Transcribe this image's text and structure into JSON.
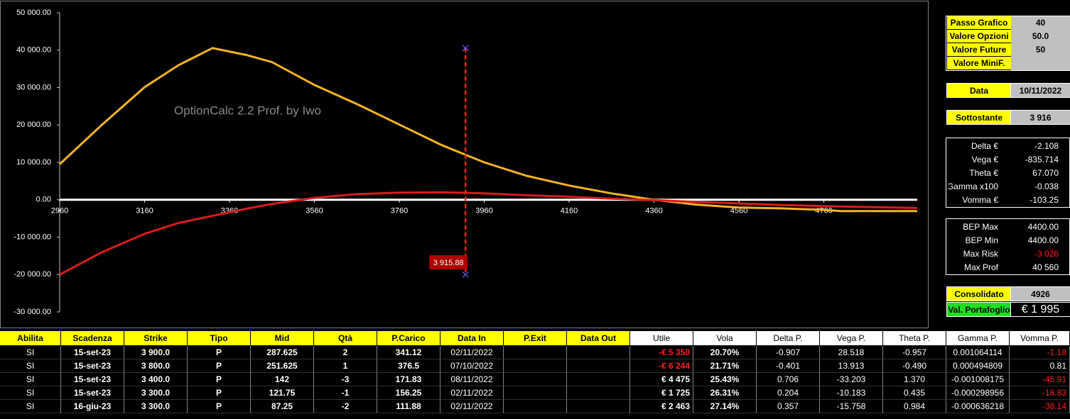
{
  "chart_data": {
    "type": "line",
    "watermark": "OptionCalc 2.2 Prof. by Iwo",
    "x": [
      2960,
      3060,
      3160,
      3240,
      3320,
      3400,
      3460,
      3560,
      3660,
      3760,
      3860,
      3960,
      4060,
      4160,
      4260,
      4360,
      4460,
      4560,
      4660,
      4760,
      4800,
      4980
    ],
    "series": [
      {
        "color": "#f5b324",
        "values": [
          9500,
          20100,
          30100,
          36000,
          40560,
          38700,
          36800,
          30700,
          25600,
          20100,
          14600,
          10000,
          6400,
          3800,
          1700,
          0,
          -1300,
          -2100,
          -2300,
          -2700,
          -3026,
          -3026
        ]
      },
      {
        "color": "#d81c1c",
        "values": [
          -20000,
          -14000,
          -9100,
          -6200,
          -4300,
          -2400,
          -1100,
          500,
          1500,
          1900,
          2000,
          1700,
          1200,
          800,
          300,
          -100,
          -600,
          -1000,
          -1400,
          -1700,
          -1800,
          -2200
        ]
      }
    ],
    "xlim": [
      2960,
      4980
    ],
    "ylim": [
      -30000,
      50000
    ],
    "xticks": [
      2960,
      3160,
      3360,
      3560,
      3760,
      3960,
      4160,
      4360,
      4560,
      4760
    ],
    "yticks": [
      {
        "value": -30000,
        "label": "-30 000.00"
      },
      {
        "value": -20000,
        "label": "-20 000.00"
      },
      {
        "value": -10000,
        "label": "-10 000.00"
      },
      {
        "value": 0,
        "label": "0.00"
      },
      {
        "value": 10000,
        "label": "10 000.00"
      },
      {
        "value": 20000,
        "label": "20 000.00"
      },
      {
        "value": 30000,
        "label": "30 000.00"
      },
      {
        "value": 40000,
        "label": "40 000.00"
      },
      {
        "value": 50000,
        "label": "50 000.00"
      }
    ],
    "marker": {
      "x": 3915.88,
      "label": "3 915.88",
      "y_top": 40560,
      "y_bottom": -20000
    }
  },
  "panel": {
    "settings": [
      {
        "label": "Passo Grafico",
        "value": "40"
      },
      {
        "label": "Valore Opzioni",
        "value": "50.0"
      },
      {
        "label": "Valore Future",
        "value": "50"
      },
      {
        "label": "Valore MiniF."
      }
    ],
    "date": {
      "label": "Data",
      "value": "10/11/2022"
    },
    "underlying": {
      "label": "Sottostante",
      "value": "3 916"
    },
    "greeks": [
      {
        "label": "Delta €",
        "value": "-2.108"
      },
      {
        "label": "Vega €",
        "value": "-835.714"
      },
      {
        "label": "Theta €",
        "value": "67.070"
      },
      {
        "label": "Gamma x100",
        "value": "-0.038"
      },
      {
        "label": "Vomma €",
        "value": "-103.25"
      }
    ],
    "bep": [
      {
        "label": "BEP Max",
        "value": "4400.00"
      },
      {
        "label": "BEP Min",
        "value": "4400.00"
      },
      {
        "label": "Max Risk",
        "value": "-3 026"
      },
      {
        "label": "Max Prof",
        "value": "40 560"
      }
    ],
    "consolidated": {
      "label": "Consolidato",
      "value": "4926"
    },
    "portfolio": {
      "label": "Val. Portafoglio",
      "value": "€ 1 995"
    }
  },
  "table": {
    "headers": [
      "Abilita",
      "Scadenza",
      "Strike",
      "Tipo",
      "Mid",
      "Qtà",
      "P.Carico",
      "Data In",
      "P.Exit",
      "Data Out",
      "Utile",
      "Vola",
      "Delta P.",
      "Vega P.",
      "Theta P.",
      "Gamma P.",
      "Vomma P."
    ],
    "rows": [
      [
        "SI",
        "15-set-23",
        "3 900.0",
        "P",
        "287.625",
        "2",
        "341.12",
        "02/11/2022",
        null,
        null,
        "-€ 5 350",
        "20.70%",
        "-0.907",
        "28.518",
        "-0.957",
        "0.001064114",
        "-1.18"
      ],
      [
        "SI",
        "15-set-23",
        "3 800.0",
        "P",
        "251.625",
        "1",
        "376.5",
        "07/10/2022",
        null,
        null,
        "-€ 6 244",
        "21.71%",
        "-0.401",
        "13.913",
        "-0.490",
        "0.000494809",
        "0.81"
      ],
      [
        "SI",
        "15-set-23",
        "3 400.0",
        "P",
        "142",
        "-3",
        "171.83",
        "08/11/2022",
        null,
        null,
        "€ 4 475",
        "25.43%",
        "0.706",
        "-33.203",
        "1.370",
        "-0.001008175",
        "-45.91"
      ],
      [
        "SI",
        "15-set-23",
        "3 300.0",
        "P",
        "121.75",
        "-1",
        "156.25",
        "02/11/2022",
        null,
        null,
        "€ 1 725",
        "26.31%",
        "0.204",
        "-10.183",
        "0.435",
        "-0.000298956",
        "-18.83"
      ],
      [
        "SI",
        "16-giu-23",
        "3 300.0",
        "P",
        "87.25",
        "-2",
        "111.88",
        "02/11/2022",
        null,
        null,
        "€ 2 463",
        "27.14%",
        "0.357",
        "-15.758",
        "0.984",
        "-0.000636218",
        "-38.14"
      ]
    ]
  }
}
